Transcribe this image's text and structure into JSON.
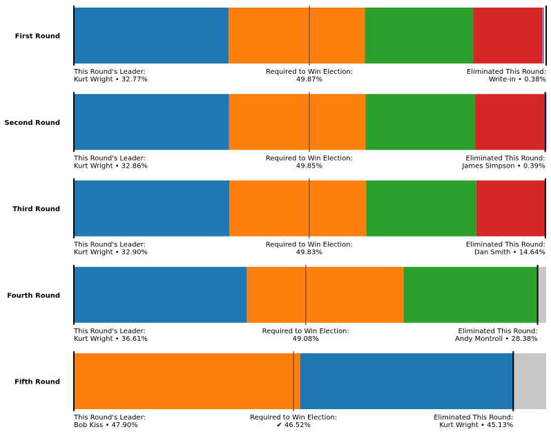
{
  "chart_data": {
    "type": "bar",
    "orientation": "horizontal-stacked",
    "rounds": [
      {
        "label": "First Round",
        "segments": [
          {
            "candidate": "Kurt Wright",
            "pct": 32.77,
            "color": "#1f77b4"
          },
          {
            "candidate": "",
            "pct": 28.85,
            "color": "#ff7f0e"
          },
          {
            "candidate": "",
            "pct": 22.96,
            "color": "#2ca02c"
          },
          {
            "candidate": "",
            "pct": 14.58,
            "color": "#d62728"
          },
          {
            "candidate": "Write-in",
            "pct": 0.38,
            "color": "#9467bd"
          }
        ],
        "exhausted_pct": 0,
        "threshold_pct": 49.87,
        "leader_title": "This Round's Leader:",
        "leader_text": "Kurt Wright • 32.77%",
        "threshold_title": "Required to Win Election:",
        "threshold_text": "49.87%",
        "eliminated_title": "Eliminated This Round:",
        "eliminated_text": "Write-in • 0.38%",
        "eliminated_end_pct": 100
      },
      {
        "label": "Second Round",
        "segments": [
          {
            "candidate": "Kurt Wright",
            "pct": 32.86,
            "color": "#1f77b4"
          },
          {
            "candidate": "",
            "pct": 28.9,
            "color": "#ff7f0e"
          },
          {
            "candidate": "",
            "pct": 23.2,
            "color": "#2ca02c"
          },
          {
            "candidate": "",
            "pct": 14.65,
            "color": "#d62728"
          },
          {
            "candidate": "James Simpson",
            "pct": 0.39,
            "color": "#9467bd"
          }
        ],
        "exhausted_pct": 0.2,
        "threshold_pct": 49.85,
        "leader_title": "This Round's Leader:",
        "leader_text": "Kurt Wright • 32.86%",
        "threshold_title": "Required to Win Election:",
        "threshold_text": "49.85%",
        "eliminated_title": "Eliminated This Round:",
        "eliminated_text": "James Simpson • 0.39%",
        "eliminated_end_pct": 99.8
      },
      {
        "label": "Third Round",
        "segments": [
          {
            "candidate": "Kurt Wright",
            "pct": 32.9,
            "color": "#1f77b4"
          },
          {
            "candidate": "",
            "pct": 29.0,
            "color": "#ff7f0e"
          },
          {
            "candidate": "",
            "pct": 23.3,
            "color": "#2ca02c"
          },
          {
            "candidate": "Dan Smith",
            "pct": 14.64,
            "color": "#d62728"
          }
        ],
        "exhausted_pct": 0.16,
        "threshold_pct": 49.83,
        "leader_title": "This Round's Leader:",
        "leader_text": "Kurt Wright • 32.90%",
        "threshold_title": "Required to Win Election:",
        "threshold_text": "49.83%",
        "eliminated_title": "Eliminated This Round:",
        "eliminated_text": "Dan Smith • 14.64%",
        "eliminated_end_pct": 99.84
      },
      {
        "label": "Fourth Round",
        "segments": [
          {
            "candidate": "Kurt Wright",
            "pct": 36.61,
            "color": "#1f77b4"
          },
          {
            "candidate": "",
            "pct": 33.2,
            "color": "#ff7f0e"
          },
          {
            "candidate": "Andy Montroll",
            "pct": 28.38,
            "color": "#2ca02c"
          }
        ],
        "exhausted_pct": 1.81,
        "threshold_pct": 49.08,
        "leader_title": "This Round's Leader:",
        "leader_text": "Kurt Wright • 36.61%",
        "threshold_title": "Required to Win Election:",
        "threshold_text": "49.08%",
        "eliminated_title": "Eliminated This Round:",
        "eliminated_text": "Andy Montroll • 28.38%",
        "eliminated_end_pct": 98.19
      },
      {
        "label": "Fifth Round",
        "segments": [
          {
            "candidate": "Bob Kiss",
            "pct": 47.9,
            "color": "#ff7f0e"
          },
          {
            "candidate": "Kurt Wright",
            "pct": 45.13,
            "color": "#1f77b4"
          }
        ],
        "exhausted_pct": 6.97,
        "threshold_pct": 46.52,
        "leader_title": "This Round's Leader:",
        "leader_text": "Bob Kiss • 47.90%",
        "threshold_title": "Required to Win Election:",
        "threshold_text": "✔ 46.52%",
        "eliminated_title": "Eliminated This Round:",
        "eliminated_text": "Kurt Wright • 45.13%",
        "eliminated_end_pct": 93.03
      }
    ],
    "exhausted_color": "#c7c7c7",
    "threshold_line_color": "#6b5a4a",
    "xlim": [
      0,
      100
    ],
    "grid": false,
    "legend": "none"
  }
}
